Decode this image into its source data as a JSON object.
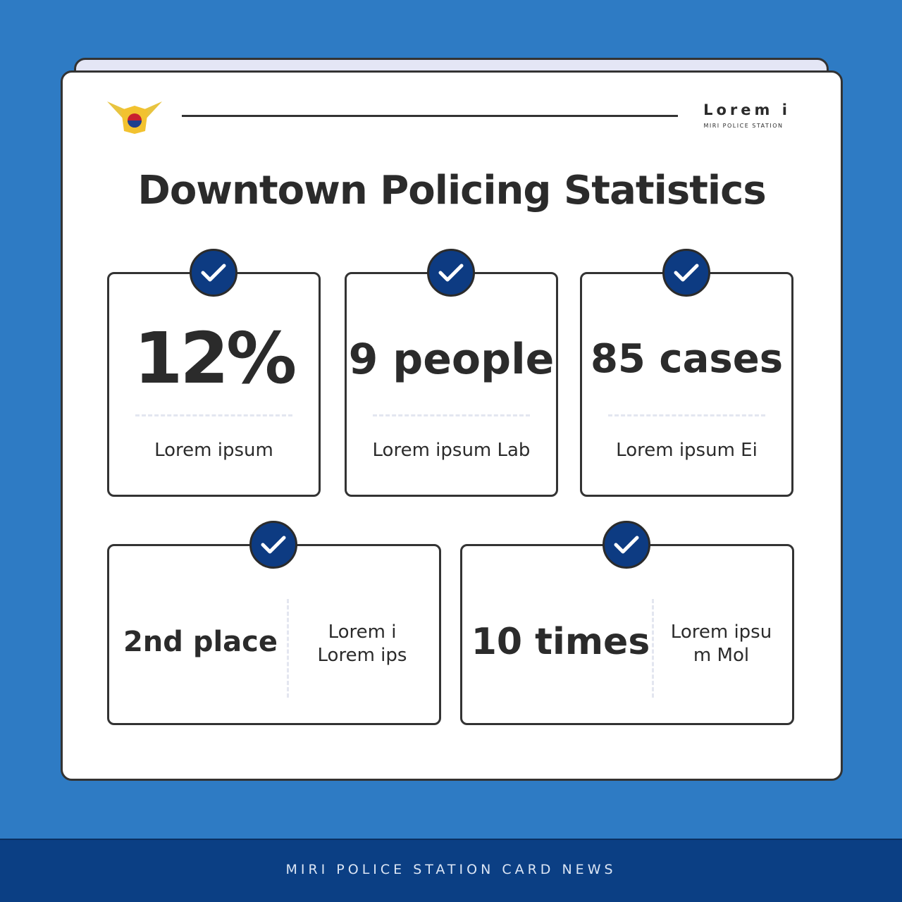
{
  "header": {
    "brand": "Lorem i",
    "subtitle": "MIRI POLICE STATION"
  },
  "title": "Downtown Policing Statistics",
  "top_cards": [
    {
      "value": "12%",
      "label": "Lorem ipsum"
    },
    {
      "value": "9 people",
      "label": "Lorem ipsum Lab"
    },
    {
      "value": "85 cases",
      "label": "Lorem ipsum Ei"
    }
  ],
  "bottom_cards": [
    {
      "value": "2nd place",
      "label_lines": [
        "Lorem i",
        "Lorem ips"
      ]
    },
    {
      "value": "10 times",
      "label_lines": [
        "Lorem ipsu",
        "m Mol"
      ]
    }
  ],
  "footer": "MIRI POLICE STATION CARD NEWS"
}
